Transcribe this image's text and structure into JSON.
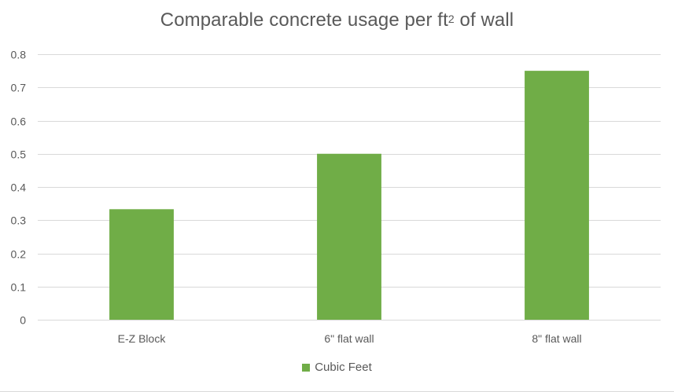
{
  "chart_data": {
    "type": "bar",
    "title": "Comparable concrete usage per ft",
    "title_superscript": "2",
    "title_suffix": " of wall",
    "categories": [
      "E-Z Block",
      "6\" flat wall",
      "8\" flat wall"
    ],
    "series": [
      {
        "name": "Cubic Feet",
        "color": "#70ad47",
        "values": [
          0.333,
          0.5,
          0.75
        ]
      }
    ],
    "ylim": [
      0,
      0.8
    ],
    "yticks": [
      0,
      0.1,
      0.2,
      0.3,
      0.4,
      0.5,
      0.6,
      0.7,
      0.8
    ],
    "ytick_labels": [
      "0",
      "0.1",
      "0.2",
      "0.3",
      "0.4",
      "0.5",
      "0.6",
      "0.7",
      "0.8"
    ],
    "xlabel": "",
    "ylabel": "",
    "grid": true,
    "legend_position": "bottom"
  }
}
